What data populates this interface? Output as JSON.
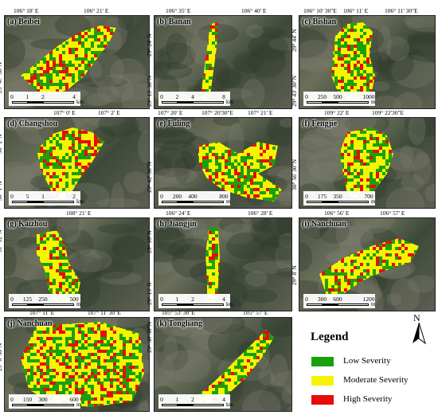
{
  "colors": {
    "low": "#1aa10a",
    "moderate": "#f5f500",
    "high": "#e80c0c",
    "imagery": "#4f5546"
  },
  "panels": [
    {
      "id": "a",
      "label": "(a) Beibei",
      "top_coords": [
        "106° 18' E",
        "106° 21' E"
      ],
      "left_coords": [
        "29° 47' 30\"N"
      ],
      "scale": {
        "ticks": [
          "0",
          "1",
          "2",
          "4"
        ],
        "unit": "km"
      }
    },
    {
      "id": "b",
      "label": "(b) Banan",
      "top_coords": [
        "106° 35' E",
        "106° 40' E"
      ],
      "left_coords": [
        "29° 24' N",
        "29° 19' 30\"N"
      ],
      "scale": {
        "ticks": [
          "0",
          "2",
          "4",
          "8"
        ],
        "unit": "km"
      }
    },
    {
      "id": "c",
      "label": "(c) Bishan",
      "top_coords": [
        "106° 10' 30\"E",
        "106° 11' E",
        "106° 11' 30\"E"
      ],
      "left_coords": [
        "29° 44' N",
        "29° 43' 30\"N"
      ],
      "scale": {
        "ticks": [
          "0",
          "250",
          "500",
          "1000"
        ],
        "unit": "m"
      }
    },
    {
      "id": "d",
      "label": "(d) Changshou",
      "top_coords": [
        "107° 0' E",
        "107° 2' E"
      ],
      "left_coords": [
        "30° 2' N",
        "30° 1' N"
      ],
      "scale": {
        "ticks": [
          "0",
          "5",
          "1",
          "2"
        ],
        "unit": "km"
      }
    },
    {
      "id": "e",
      "label": "(e) Fuling",
      "top_coords": [
        "107° 20' E",
        "107° 20'30\"E",
        "107° 21' E"
      ],
      "left_coords": [
        "29° 42' 30\"N"
      ],
      "scale": {
        "ticks": [
          "0",
          "200",
          "400",
          "800"
        ],
        "unit": "m"
      }
    },
    {
      "id": "f",
      "label": "(f) Fengjie",
      "top_coords": [
        "109° 22' E",
        "109° 22'30\"E"
      ],
      "left_coords": [
        "30° 56' 30\"N"
      ],
      "scale": {
        "ticks": [
          "0",
          "175",
          "350",
          "700"
        ],
        "unit": "m"
      }
    },
    {
      "id": "g",
      "label": "(g) Kaizhou",
      "top_coords": [
        "108° 21' E"
      ],
      "left_coords": [
        "31° 12' N"
      ],
      "scale": {
        "ticks": [
          "0",
          "125",
          "250",
          "500"
        ],
        "unit": "m"
      }
    },
    {
      "id": "h",
      "label": "(h) Jiangjin",
      "top_coords": [
        "106° 24' E",
        "106° 28' E"
      ],
      "left_coords": [
        "29° 18' N",
        "29° 15' N"
      ],
      "scale": {
        "ticks": [
          "0",
          "1",
          "2",
          "4"
        ],
        "unit": "km"
      }
    },
    {
      "id": "i",
      "label": "(i) Nanchuan",
      "top_coords": [
        "106° 56' E",
        "106° 57' E"
      ],
      "left_coords": [
        "29° 8' N"
      ],
      "scale": {
        "ticks": [
          "0",
          "300",
          "600",
          "1200"
        ],
        "unit": "m"
      }
    },
    {
      "id": "j",
      "label": "(j) Nanchuan",
      "top_coords": [
        "107° 11' E",
        "107° 11' 30\"E"
      ],
      "left_coords": [
        "29° 8' 30\"N"
      ],
      "scale": {
        "ticks": [
          "0",
          "150",
          "300",
          "600"
        ],
        "unit": "m"
      }
    },
    {
      "id": "k",
      "label": "(k) Tongliang",
      "top_coords": [
        "105° 53' 30\"E",
        "105° 57' E"
      ],
      "left_coords": [
        "29° 38' 30\"N"
      ],
      "scale": {
        "ticks": [
          "0",
          "1",
          "2",
          "4"
        ],
        "unit": "km"
      }
    }
  ],
  "legend": {
    "title": "Legend",
    "items": [
      {
        "label": "Low Severity",
        "level": "low"
      },
      {
        "label": "Moderate Severity",
        "level": "moderate"
      },
      {
        "label": "High Severity",
        "level": "high"
      }
    ]
  },
  "north_arrow": {
    "label": "N"
  }
}
